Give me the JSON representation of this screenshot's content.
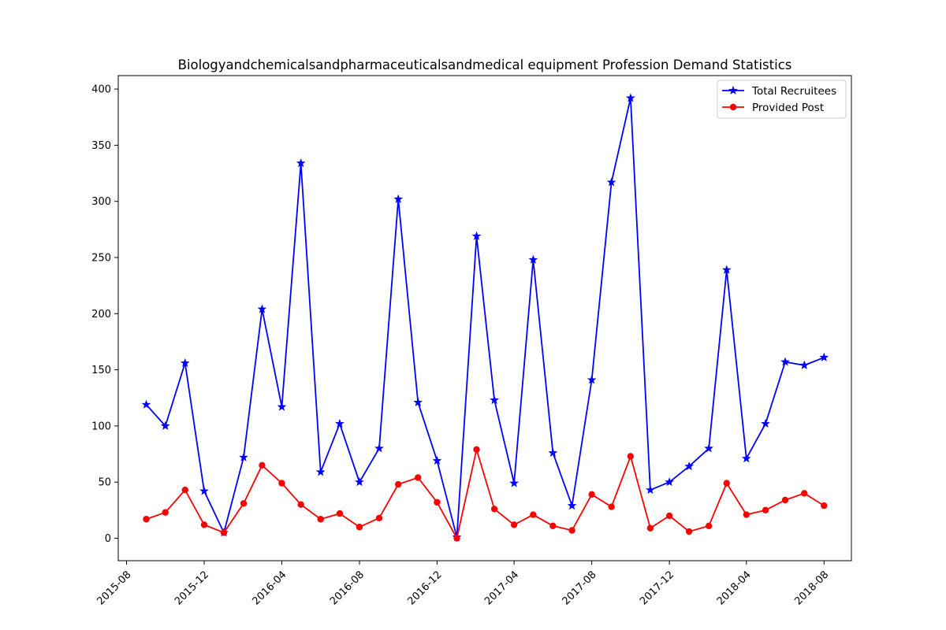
{
  "chart_data": {
    "type": "line",
    "title": "Biologyandchemicalsandpharmaceuticalsandmedical equipment Profession Demand Statistics",
    "xlabel": "",
    "ylabel": "",
    "x_type": "date",
    "xlim": [
      "2015-07-19",
      "2018-09-13"
    ],
    "ylim": [
      -20,
      412
    ],
    "x_ticks": [
      "2015-08",
      "2015-12",
      "2016-04",
      "2016-08",
      "2016-12",
      "2017-04",
      "2017-08",
      "2017-12",
      "2018-04",
      "2018-08"
    ],
    "y_ticks": [
      0,
      50,
      100,
      150,
      200,
      250,
      300,
      350,
      400
    ],
    "grid": false,
    "legend": "top-right",
    "x": [
      "2015-09",
      "2015-10",
      "2015-11",
      "2015-12",
      "2016-01",
      "2016-02",
      "2016-03",
      "2016-04",
      "2016-05",
      "2016-06",
      "2016-07",
      "2016-08",
      "2016-09",
      "2016-10",
      "2016-11",
      "2016-12",
      "2017-01",
      "2017-02",
      "2017-03",
      "2017-04",
      "2017-05",
      "2017-06",
      "2017-07",
      "2017-08",
      "2017-09",
      "2017-10",
      "2017-11",
      "2017-12",
      "2018-01",
      "2018-02",
      "2018-03",
      "2018-04",
      "2018-05",
      "2018-06",
      "2018-07",
      "2018-08"
    ],
    "series": [
      {
        "name": "Total Recruitees",
        "color": "#0000ff",
        "marker": "star",
        "values": [
          119,
          100,
          156,
          42,
          5,
          72,
          204,
          117,
          334,
          59,
          102,
          50,
          80,
          302,
          121,
          69,
          1,
          269,
          123,
          49,
          248,
          76,
          29,
          141,
          317,
          392,
          43,
          50,
          64,
          80,
          239,
          71,
          102,
          157,
          154,
          161
        ]
      },
      {
        "name": "Provided Post",
        "color": "#ff0000",
        "marker": "circle",
        "values": [
          17,
          23,
          43,
          12,
          5,
          31,
          65,
          49,
          30,
          17,
          22,
          10,
          18,
          48,
          54,
          32,
          0,
          79,
          26,
          12,
          21,
          11,
          7,
          39,
          28,
          73,
          9,
          20,
          6,
          11,
          49,
          21,
          25,
          34,
          40,
          29
        ]
      }
    ]
  }
}
